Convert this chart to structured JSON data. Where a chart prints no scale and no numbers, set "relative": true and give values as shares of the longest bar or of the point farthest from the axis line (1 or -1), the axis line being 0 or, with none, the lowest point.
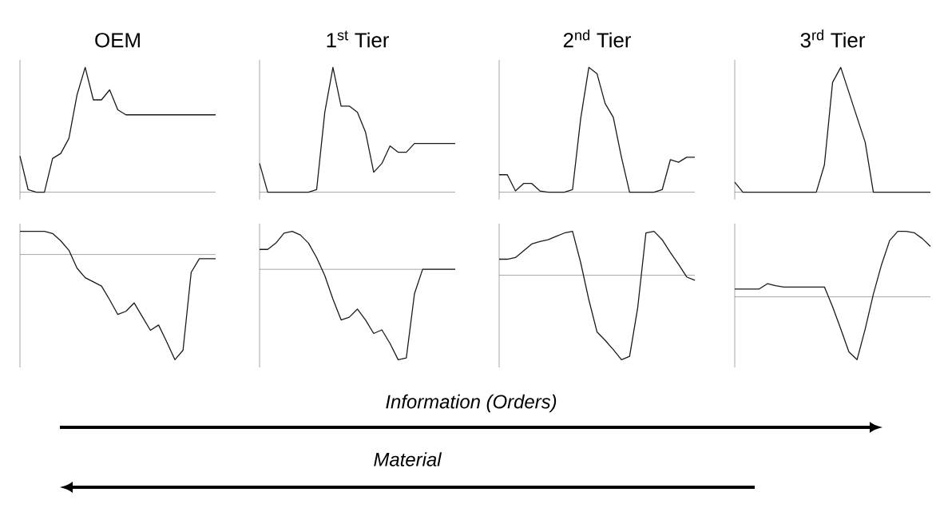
{
  "chart_data": [
    {
      "type": "line",
      "title": "OEM",
      "relative": true,
      "color": "#1a1a1a",
      "categories": [
        null,
        null,
        null,
        null,
        null,
        null,
        null,
        null,
        null,
        null,
        null,
        null,
        null,
        null,
        null,
        null,
        null,
        null,
        null,
        null,
        null,
        null,
        null,
        null,
        null
      ],
      "values": [
        0.29,
        0.02,
        0,
        0,
        0.27,
        0.31,
        0.43,
        0.78,
        1,
        0.74,
        0.74,
        0.82,
        0.66,
        0.62,
        0.62,
        0.62,
        0.62,
        0.62,
        0.62,
        0.62,
        0.62,
        0.62,
        0.62,
        0.62,
        0.62
      ]
    },
    {
      "type": "line",
      "title": "1$^{st}$ Tier",
      "relative": true,
      "color": "#1a1a1a",
      "categories": [
        null,
        null,
        null,
        null,
        null,
        null,
        null,
        null,
        null,
        null,
        null,
        null,
        null,
        null,
        null,
        null,
        null,
        null,
        null,
        null,
        null,
        null,
        null,
        null,
        null
      ],
      "values": [
        0.23,
        0,
        0,
        0,
        0,
        0,
        0,
        0.02,
        0.64,
        1,
        0.69,
        0.69,
        0.64,
        0.48,
        0.16,
        0.23,
        0.37,
        0.32,
        0.32,
        0.39,
        0.39,
        0.39,
        0.39,
        0.39,
        0.39
      ]
    },
    {
      "type": "line",
      "title": "2$^{nd}$ Tier",
      "relative": true,
      "color": "#1a1a1a",
      "categories": [
        null,
        null,
        null,
        null,
        null,
        null,
        null,
        null,
        null,
        null,
        null,
        null,
        null,
        null,
        null,
        null,
        null,
        null,
        null,
        null,
        null,
        null,
        null,
        null,
        null
      ],
      "values": [
        0.14,
        0.14,
        0.01,
        0.07,
        0.07,
        0.01,
        0,
        0,
        0,
        0.02,
        0.59,
        1,
        0.95,
        0.71,
        0.6,
        0.28,
        0,
        0,
        0,
        0,
        0.02,
        0.26,
        0.24,
        0.28,
        0.28
      ]
    },
    {
      "type": "line",
      "title": "3$^{rd}$ Tier",
      "relative": true,
      "color": "#1a1a1a",
      "categories": [
        null,
        null,
        null,
        null,
        null,
        null,
        null,
        null,
        null,
        null,
        null,
        null,
        null,
        null,
        null,
        null,
        null,
        null,
        null,
        null,
        null,
        null,
        null,
        null,
        null
      ],
      "values": [
        0.08,
        0,
        0,
        0,
        0,
        0,
        0,
        0,
        0,
        0,
        0,
        0.22,
        0.88,
        1,
        0.8,
        0.6,
        0.4,
        0,
        0,
        0,
        0,
        0,
        0,
        0,
        0
      ]
    },
    {
      "type": "line",
      "relative": true,
      "color": "#1a1a1a",
      "categories": [
        null,
        null,
        null,
        null,
        null,
        null,
        null,
        null,
        null,
        null,
        null,
        null,
        null,
        null,
        null,
        null,
        null,
        null,
        null,
        null,
        null,
        null,
        null,
        null,
        null
      ],
      "values": [
        0.22,
        0.22,
        0.22,
        0.22,
        0.2,
        0.13,
        0.04,
        -0.13,
        -0.22,
        -0.26,
        -0.3,
        -0.43,
        -0.57,
        -0.54,
        -0.46,
        -0.59,
        -0.72,
        -0.67,
        -0.83,
        -1,
        -0.91,
        -0.17,
        -0.04,
        -0.04,
        -0.04
      ]
    },
    {
      "type": "line",
      "relative": true,
      "color": "#1a1a1a",
      "categories": [
        null,
        null,
        null,
        null,
        null,
        null,
        null,
        null,
        null,
        null,
        null,
        null,
        null,
        null,
        null,
        null,
        null,
        null,
        null,
        null,
        null,
        null,
        null,
        null,
        null
      ],
      "values": [
        0.22,
        0.22,
        0.29,
        0.4,
        0.42,
        0.38,
        0.29,
        0.13,
        -0.07,
        -0.33,
        -0.56,
        -0.53,
        -0.44,
        -0.56,
        -0.71,
        -0.67,
        -0.82,
        -1,
        -0.98,
        -0.27,
        0,
        0,
        0,
        0,
        0
      ]
    },
    {
      "type": "line",
      "relative": true,
      "color": "#1a1a1a",
      "categories": [
        null,
        null,
        null,
        null,
        null,
        null,
        null,
        null,
        null,
        null,
        null,
        null,
        null,
        null,
        null,
        null,
        null,
        null,
        null,
        null,
        null,
        null,
        null,
        null,
        null
      ],
      "values": [
        0.19,
        0.19,
        0.21,
        0.29,
        0.37,
        0.4,
        0.42,
        0.46,
        0.5,
        0.52,
        0.15,
        -0.29,
        -0.67,
        -0.77,
        -0.88,
        -1,
        -0.96,
        -0.38,
        0.5,
        0.52,
        0.42,
        0.27,
        0.13,
        -0.02,
        -0.06
      ]
    },
    {
      "type": "line",
      "relative": true,
      "color": "#1a1a1a",
      "categories": [
        null,
        null,
        null,
        null,
        null,
        null,
        null,
        null,
        null,
        null,
        null,
        null,
        null,
        null,
        null,
        null,
        null,
        null,
        null,
        null,
        null,
        null,
        null,
        null,
        null
      ],
      "values": [
        0.12,
        0.12,
        0.12,
        0.12,
        0.2,
        0.17,
        0.15,
        0.15,
        0.15,
        0.15,
        0.15,
        0.15,
        -0.15,
        -0.49,
        -0.84,
        -0.96,
        -0.49,
        0.04,
        0.49,
        0.86,
        1,
        1,
        0.98,
        0.89,
        0.77
      ]
    },
    {
      "type": "other",
      "annotations": [
        "Information (Orders)",
        "Material"
      ]
    }
  ]
}
